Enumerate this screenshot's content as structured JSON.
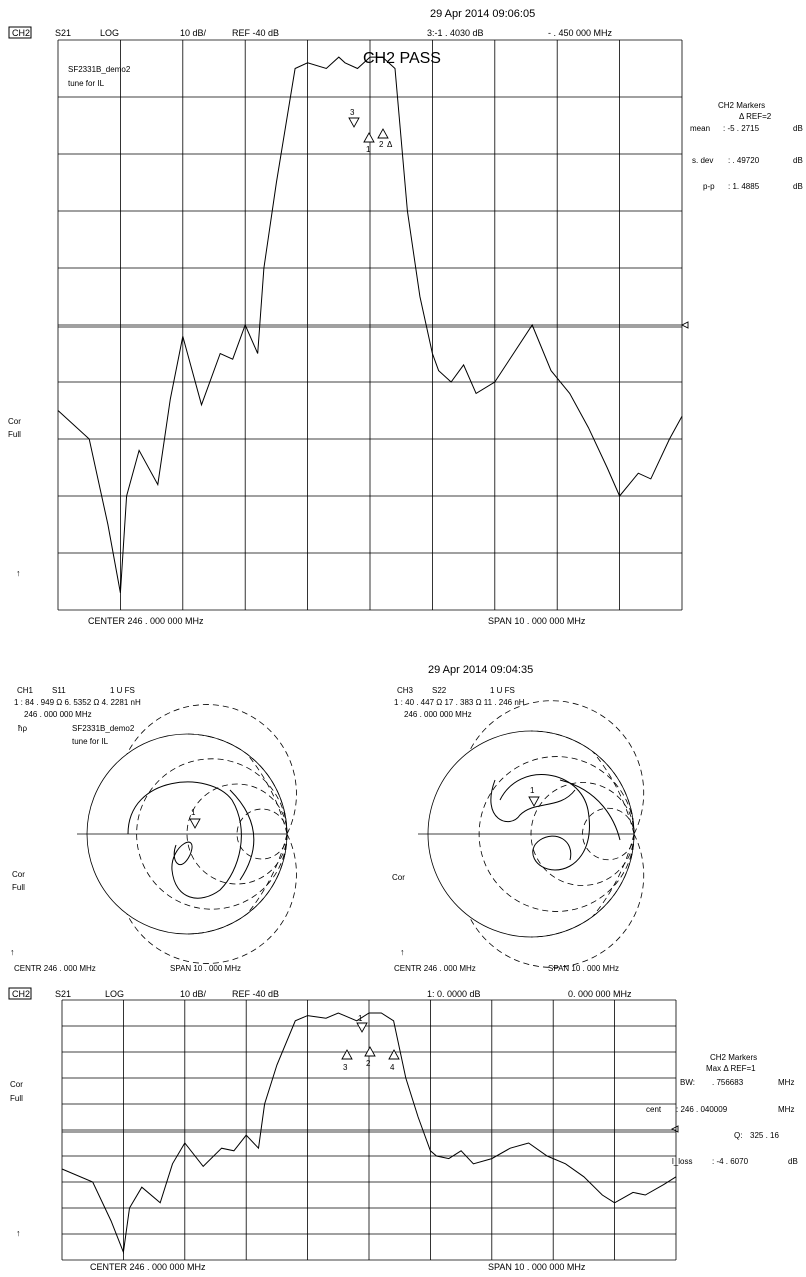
{
  "chart_data": [
    {
      "type": "line",
      "timestamp": "29 Apr 2014 09:06:05",
      "header": {
        "channel": "CH2",
        "param": "S21",
        "format": "LOG",
        "scale": "10 dB/",
        "ref": "REF -40 dB",
        "marker_readout": "3:-1 . 4030    dB",
        "marker_freq": "- . 450   000    MHz"
      },
      "status": "CH2 PASS",
      "notes": [
        "SF2331B_demo2",
        "tune for IL"
      ],
      "side_labels": [
        "Cor",
        "Full"
      ],
      "markers_title": "CH2    Markers",
      "markers_ref": "Δ REF=2",
      "stats": [
        {
          "label": "mean",
          "value": ": -5 . 2715",
          "unit": "dB"
        },
        {
          "label": "s. dev",
          "value": ": . 49720",
          "unit": "dB"
        },
        {
          "label": "p-p",
          "value": ": 1. 4885",
          "unit": "dB"
        }
      ],
      "center": "CENTER    246 . 000   000   MHz",
      "span": "SPAN      10 . 000   000   MHz",
      "x_range_mhz": [
        241,
        251
      ],
      "ylim_db": [
        -100,
        0
      ],
      "marker_labels": [
        "3",
        "1",
        "2",
        "Δ"
      ],
      "x": [
        241.0,
        241.5,
        241.8,
        242.0,
        242.1,
        242.3,
        242.6,
        242.8,
        243.0,
        243.3,
        243.6,
        243.8,
        244.0,
        244.2,
        244.3,
        244.5,
        244.8,
        245.0,
        245.3,
        245.5,
        245.6,
        245.8,
        246.0,
        246.2,
        246.4,
        246.6,
        246.8,
        247.0,
        247.1,
        247.3,
        247.5,
        247.7,
        248.0,
        248.3,
        248.6,
        248.9,
        249.2,
        249.5,
        249.8,
        250.0,
        250.3,
        250.5,
        250.8,
        251.0
      ],
      "y": [
        -65,
        -70,
        -85,
        -97,
        -80,
        -72,
        -78,
        -63,
        -52,
        -64,
        -55,
        -56,
        -50,
        -55,
        -40,
        -25,
        -5,
        -4,
        -5,
        -3,
        -4,
        -5,
        -3,
        -3,
        -5,
        -30,
        -45,
        -55,
        -58,
        -60,
        -57,
        -62,
        -60,
        -55,
        -50,
        -58,
        -62,
        -68,
        -75,
        -80,
        -76,
        -77,
        -70,
        -66
      ]
    },
    {
      "type": "scatter",
      "timestamp": "29 Apr 2014 09:04:35",
      "header": {
        "channel": "CH1",
        "param": "S11",
        "scale": "1 U FS",
        "line1": "1 : 84 . 949   Ω    6. 5352   Ω    4. 2281    nH",
        "line2": "246 . 000   000    MHz"
      },
      "notes": [
        "SF2331B_demo2",
        "tune for IL"
      ],
      "corner_label": "ħρ",
      "side_labels": [
        "Cor",
        "Full"
      ],
      "center": "CENTR    246 . 000    MHz",
      "span": "SPAN     10 . 000    MHz",
      "marker_labels": [
        "1"
      ]
    },
    {
      "type": "scatter",
      "header": {
        "channel": "CH3",
        "param": "S22",
        "scale": "1 U FS",
        "line1": "1 : 40 . 447   Ω    17 . 383   Ω    11 . 246    nH",
        "line2": "246 . 000   000    MHz"
      },
      "side_labels": [
        "Cor"
      ],
      "center": "CENTR    246 . 000    MHz",
      "span": "SPAN     10 . 000    MHz",
      "marker_labels": [
        "1"
      ]
    },
    {
      "type": "line",
      "header": {
        "channel": "CH2",
        "param": "S21",
        "format": "LOG",
        "scale": "10 dB/",
        "ref": "REF -40 dB",
        "marker_readout": "1:  0. 0000    dB",
        "marker_freq": "0. 000   000    MHz"
      },
      "side_labels": [
        "Cor",
        "Full"
      ],
      "markers_title": "CH2    Markers",
      "markers_sub": "Max     Δ REF=1",
      "stats": [
        {
          "label": "BW:",
          "value": ". 756683",
          "unit": "MHz"
        },
        {
          "label": "cent",
          "value": ":   246 . 040009",
          "unit": "MHz"
        },
        {
          "label": "Q:",
          "value": "325 . 16",
          "unit": ""
        },
        {
          "label": "l_loss",
          "value": ":  -4 . 6070",
          "unit": "dB"
        }
      ],
      "center": "CENTER    246 . 000   000   MHz",
      "span": "SPAN      10 . 000   000   MHz",
      "x_range_mhz": [
        241,
        251
      ],
      "ylim_db": [
        -100,
        0
      ],
      "marker_labels": [
        "1",
        "3",
        "2",
        "4"
      ],
      "x": [
        241.0,
        241.5,
        241.8,
        242.0,
        242.1,
        242.3,
        242.6,
        242.8,
        243.0,
        243.3,
        243.6,
        243.8,
        244.0,
        244.2,
        244.3,
        244.5,
        244.8,
        245.0,
        245.3,
        245.5,
        245.6,
        245.8,
        246.0,
        246.2,
        246.4,
        246.6,
        246.8,
        247.0,
        247.1,
        247.3,
        247.5,
        247.7,
        248.0,
        248.3,
        248.6,
        248.9,
        249.2,
        249.5,
        249.8,
        250.0,
        250.3,
        250.5,
        250.8,
        251.0
      ],
      "y": [
        -65,
        -70,
        -85,
        -97,
        -80,
        -72,
        -78,
        -63,
        -55,
        -64,
        -57,
        -58,
        -52,
        -57,
        -40,
        -25,
        -8,
        -6,
        -7,
        -5,
        -6,
        -8,
        -5,
        -5,
        -8,
        -30,
        -45,
        -58,
        -60,
        -61,
        -58,
        -63,
        -61,
        -57,
        -55,
        -60,
        -63,
        -68,
        -75,
        -78,
        -74,
        -75,
        -71,
        -68
      ]
    }
  ]
}
